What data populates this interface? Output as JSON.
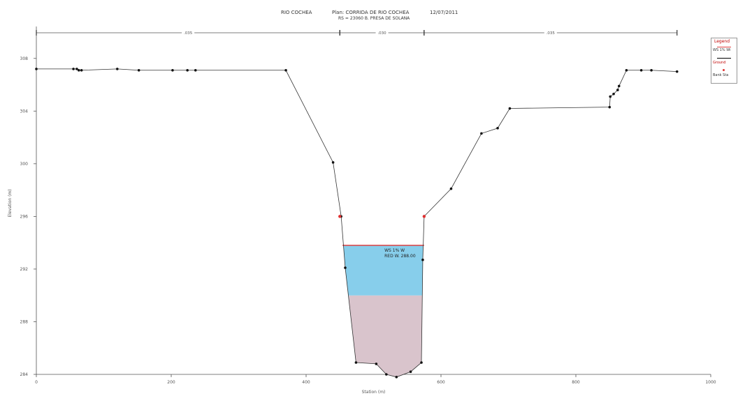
{
  "header": {
    "line1_river": "RIO COCHEA",
    "line1_plan": "Plan: CORRIDA DE RIO COCHEA",
    "line1_date": "12/07/2011",
    "line2": "RS = 23060   B. PRESA DE SOLANA"
  },
  "legend": {
    "title": "Legend",
    "items": [
      {
        "label": "WS 1% Wi",
        "color": "#e04040",
        "kind": "line"
      },
      {
        "label": "Ground",
        "color": "#000000",
        "kind": "line"
      },
      {
        "label": "Bank Sta",
        "color": "#e03030",
        "kind": "marker"
      }
    ]
  },
  "annotations": {
    "ws_label": "WS 1% W",
    "ws2_label": "RED W. 288.00"
  },
  "chart_data": {
    "type": "line",
    "title": "RIO COCHEA    Plan: CORRIDA DE RIO COCHEA    12/07/2011",
    "subtitle": "RS = 23060   B. PRESA DE SOLANA",
    "xlabel": "Station (m)",
    "ylabel": "Elevation (m)",
    "xlim": [
      0,
      1000
    ],
    "ylim": [
      284,
      310
    ],
    "x_ticks": [
      0,
      200,
      400,
      600,
      800,
      1000
    ],
    "y_ticks": [
      284,
      288,
      292,
      296,
      300,
      304,
      308
    ],
    "grid": false,
    "legend_position": "right",
    "manning_segments": [
      {
        "x_start": 0,
        "x_end": 450,
        "label": ".035"
      },
      {
        "x_start": 450,
        "x_end": 575,
        "label": ".030"
      },
      {
        "x_start": 575,
        "x_end": 950,
        "label": ".035"
      }
    ],
    "series": [
      {
        "name": "Ground",
        "color": "#000000",
        "x": [
          0,
          55,
          60,
          63,
          67,
          120,
          152,
          202,
          224,
          236,
          370,
          440,
          452,
          458,
          474,
          504,
          519,
          534,
          555,
          571,
          573,
          575,
          615,
          660,
          684,
          702,
          850,
          851,
          856,
          862,
          864,
          875,
          897,
          912,
          950
        ],
        "y": [
          307.2,
          307.2,
          307.2,
          307.1,
          307.1,
          307.2,
          307.1,
          307.1,
          307.1,
          307.1,
          307.1,
          300.1,
          296.0,
          292.1,
          284.9,
          284.8,
          284.0,
          283.8,
          284.2,
          284.9,
          292.7,
          296.0,
          298.1,
          302.3,
          302.7,
          304.2,
          304.3,
          305.1,
          305.3,
          305.6,
          305.9,
          307.1,
          307.1,
          307.1,
          307.0
        ]
      },
      {
        "name": "WS 1% W",
        "color": "#e04040",
        "x": [
          454,
          575
        ],
        "y": [
          293.8,
          293.8
        ]
      }
    ],
    "bank_stations": [
      {
        "x": 450,
        "y": 296.0
      },
      {
        "x": 575,
        "y": 296.0
      }
    ],
    "fills": [
      {
        "name": "water",
        "color": "#87ceeb",
        "y_top": 293.8,
        "y_bottom": 290.0
      },
      {
        "name": "lower",
        "color": "#d9c4cc",
        "y_top": 290.0,
        "y_bottom": 283.8
      }
    ]
  }
}
